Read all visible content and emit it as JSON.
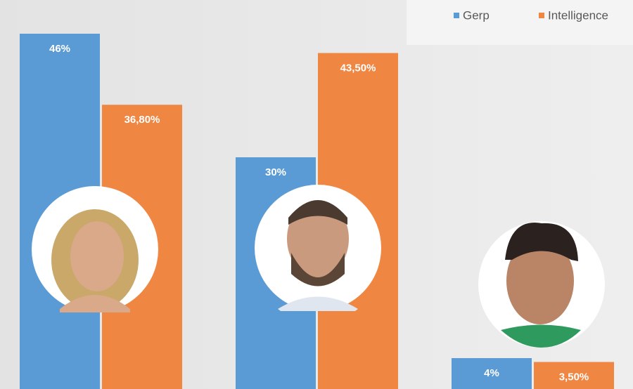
{
  "chart_data": {
    "type": "bar",
    "categories": [
      null,
      null,
      null
    ],
    "series": [
      {
        "name": "Gerp",
        "color": "#5b9bd5",
        "values": [
          46,
          30,
          4
        ],
        "value_labels": [
          "46%",
          "30%",
          "4%"
        ]
      },
      {
        "name": "Intelligence",
        "color": "#ef8641",
        "values": [
          36.8,
          43.5,
          3.5
        ],
        "value_labels": [
          "36,80%",
          "43,50%",
          "3,50%"
        ]
      }
    ],
    "legend": "upper right"
  }
}
